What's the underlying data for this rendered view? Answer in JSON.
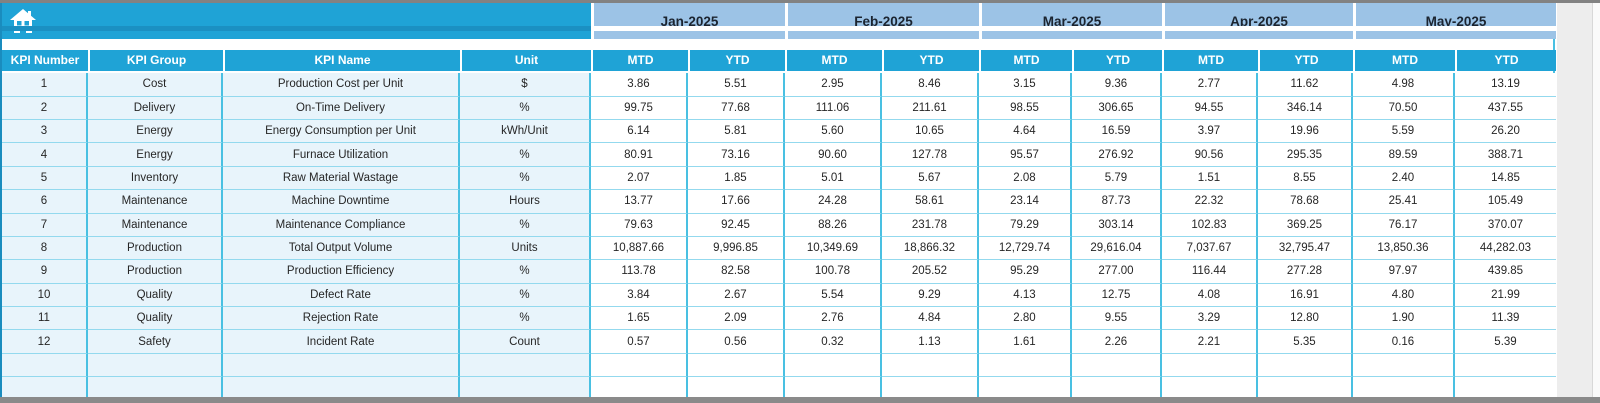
{
  "sheet": {
    "corner": {
      "icon": "home"
    },
    "column_headers": [
      "KPI Number",
      "KPI Group",
      "KPI Name",
      "Unit"
    ],
    "months": [
      "Jan-2025",
      "Feb-2025",
      "Mar-2025",
      "Apr-2025",
      "May-2025"
    ],
    "period_headers": [
      "MTD",
      "YTD"
    ],
    "rows": [
      {
        "kpi_number": "1",
        "kpi_group": "Cost",
        "kpi_name": "Production Cost per Unit",
        "unit": "$",
        "values": [
          "3.86",
          "5.51",
          "2.95",
          "8.46",
          "3.15",
          "9.36",
          "2.77",
          "11.62",
          "4.98",
          "13.19"
        ]
      },
      {
        "kpi_number": "2",
        "kpi_group": "Delivery",
        "kpi_name": "On-Time Delivery",
        "unit": "%",
        "values": [
          "99.75",
          "77.68",
          "111.06",
          "211.61",
          "98.55",
          "306.65",
          "94.55",
          "346.14",
          "70.50",
          "437.55"
        ]
      },
      {
        "kpi_number": "3",
        "kpi_group": "Energy",
        "kpi_name": "Energy Consumption per Unit",
        "unit": "kWh/Unit",
        "values": [
          "6.14",
          "5.81",
          "5.60",
          "10.65",
          "4.64",
          "16.59",
          "3.97",
          "19.96",
          "5.59",
          "26.20"
        ]
      },
      {
        "kpi_number": "4",
        "kpi_group": "Energy",
        "kpi_name": "Furnace Utilization",
        "unit": "%",
        "values": [
          "80.91",
          "73.16",
          "90.60",
          "127.78",
          "95.57",
          "276.92",
          "90.56",
          "295.35",
          "89.59",
          "388.71"
        ]
      },
      {
        "kpi_number": "5",
        "kpi_group": "Inventory",
        "kpi_name": "Raw Material Wastage",
        "unit": "%",
        "values": [
          "2.07",
          "1.85",
          "5.01",
          "5.67",
          "2.08",
          "5.79",
          "1.51",
          "8.55",
          "2.40",
          "14.85"
        ]
      },
      {
        "kpi_number": "6",
        "kpi_group": "Maintenance",
        "kpi_name": "Machine Downtime",
        "unit": "Hours",
        "values": [
          "13.77",
          "17.66",
          "24.28",
          "58.61",
          "23.14",
          "87.73",
          "22.32",
          "78.68",
          "25.41",
          "105.49"
        ]
      },
      {
        "kpi_number": "7",
        "kpi_group": "Maintenance",
        "kpi_name": "Maintenance Compliance",
        "unit": "%",
        "values": [
          "79.63",
          "92.45",
          "88.26",
          "231.78",
          "79.29",
          "303.14",
          "102.83",
          "369.25",
          "76.17",
          "370.07"
        ]
      },
      {
        "kpi_number": "8",
        "kpi_group": "Production",
        "kpi_name": "Total Output Volume",
        "unit": "Units",
        "values": [
          "10,887.66",
          "9,996.85",
          "10,349.69",
          "18,866.32",
          "12,729.74",
          "29,616.04",
          "7,037.67",
          "32,795.47",
          "13,850.36",
          "44,282.03"
        ]
      },
      {
        "kpi_number": "9",
        "kpi_group": "Production",
        "kpi_name": "Production Efficiency",
        "unit": "%",
        "values": [
          "113.78",
          "82.58",
          "100.78",
          "205.52",
          "95.29",
          "277.00",
          "116.44",
          "277.28",
          "97.97",
          "439.85"
        ]
      },
      {
        "kpi_number": "10",
        "kpi_group": "Quality",
        "kpi_name": "Defect Rate",
        "unit": "%",
        "values": [
          "3.84",
          "2.67",
          "5.54",
          "9.29",
          "4.13",
          "12.75",
          "4.08",
          "16.91",
          "4.80",
          "21.99"
        ]
      },
      {
        "kpi_number": "11",
        "kpi_group": "Quality",
        "kpi_name": "Rejection Rate",
        "unit": "%",
        "values": [
          "1.65",
          "2.09",
          "2.76",
          "4.84",
          "2.80",
          "9.55",
          "3.29",
          "12.80",
          "1.90",
          "11.39"
        ]
      },
      {
        "kpi_number": "12",
        "kpi_group": "Safety",
        "kpi_name": "Incident Rate",
        "unit": "Count",
        "values": [
          "0.57",
          "0.56",
          "0.32",
          "1.13",
          "1.61",
          "2.26",
          "2.21",
          "5.35",
          "0.16",
          "5.39"
        ]
      }
    ],
    "empty_row_count": 2
  },
  "colors": {
    "accent_cyan": "#1fa3d6",
    "month_blue": "#9cc3e6",
    "grid_cyan": "#49c0e2",
    "row_tint": "#e8f4fb",
    "outer_border_gray": "#828282",
    "dark_cyan_edge": "#1a8cbe",
    "header_text": "#ffffff",
    "month_text": "#1b2430",
    "data_text": "#262626"
  }
}
